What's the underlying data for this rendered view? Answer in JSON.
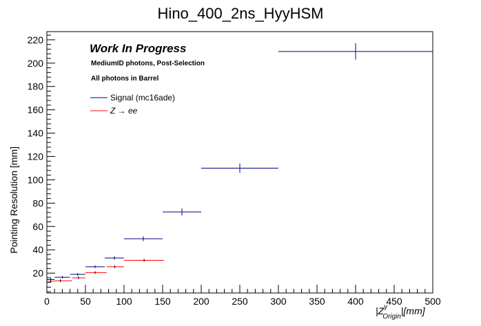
{
  "chart_data": {
    "type": "scatter",
    "title": "Hino_400_2ns_HyyHSM",
    "xlabel": "|Z_Origin^γ|[mm]",
    "ylabel": "Pointing Resolution [mm]",
    "xlim": [
      0,
      500
    ],
    "ylim": [
      3,
      227
    ],
    "x_ticks": [
      0,
      50,
      100,
      150,
      200,
      250,
      300,
      350,
      400,
      450,
      500
    ],
    "y_ticks": [
      20,
      40,
      60,
      80,
      100,
      120,
      140,
      160,
      180,
      200,
      220
    ],
    "grid": false,
    "legend_position": "top-left",
    "annotations": {
      "wip": "Work In Progress",
      "line1": "MediumID photons, Post-Selection",
      "line2": "All photons in Barrel"
    },
    "series": [
      {
        "name": "Signal (mc16ade)",
        "color": "#000080",
        "points": [
          {
            "x": 5,
            "xlo": 0,
            "xhi": 10,
            "y": 14.5,
            "err": 1.0
          },
          {
            "x": 20,
            "xlo": 10,
            "xhi": 30,
            "y": 16.5,
            "err": 0.8
          },
          {
            "x": 40,
            "xlo": 30,
            "xhi": 50,
            "y": 19,
            "err": 1.0
          },
          {
            "x": 62.5,
            "xlo": 50,
            "xhi": 75,
            "y": 25.5,
            "err": 1.2
          },
          {
            "x": 87.5,
            "xlo": 75,
            "xhi": 100,
            "y": 33,
            "err": 1.5
          },
          {
            "x": 125,
            "xlo": 100,
            "xhi": 150,
            "y": 49.5,
            "err": 2.0
          },
          {
            "x": 175,
            "xlo": 150,
            "xhi": 200,
            "y": 72.5,
            "err": 3.0
          },
          {
            "x": 250,
            "xlo": 200,
            "xhi": 300,
            "y": 110,
            "err": 4.0
          },
          {
            "x": 400,
            "xlo": 300,
            "xhi": 500,
            "y": 210,
            "err": 7.0
          }
        ]
      },
      {
        "name": "Z → ee",
        "color": "#ff0000",
        "points": [
          {
            "x": 5,
            "xlo": 0,
            "xhi": 10,
            "y": 13,
            "err": 0.3
          },
          {
            "x": 17.5,
            "xlo": 10,
            "xhi": 32.5,
            "y": 13.5,
            "err": 0.3
          },
          {
            "x": 41,
            "xlo": 32.5,
            "xhi": 50,
            "y": 16,
            "err": 0.3
          },
          {
            "x": 62.5,
            "xlo": 50,
            "xhi": 77.5,
            "y": 20.5,
            "err": 0.3
          },
          {
            "x": 88,
            "xlo": 77.5,
            "xhi": 100,
            "y": 25.5,
            "err": 0.3
          },
          {
            "x": 126,
            "xlo": 100,
            "xhi": 152,
            "y": 31,
            "err": 0.5
          }
        ]
      }
    ]
  }
}
